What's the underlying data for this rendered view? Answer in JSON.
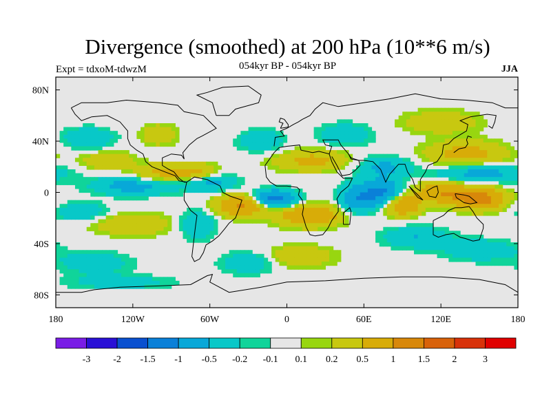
{
  "title": "Divergence (smoothed) at 200 hPa (10**6 m/s)",
  "subtitle": "054kyr BP - 054kyr BP",
  "left_string": "Expt = tdxoM-tdwzM",
  "right_string": "JJA",
  "axes": {
    "x_ticks": [
      {
        "lon": -180,
        "label": "180"
      },
      {
        "lon": -120,
        "label": "120W"
      },
      {
        "lon": -60,
        "label": "60W"
      },
      {
        "lon": 0,
        "label": "0"
      },
      {
        "lon": 60,
        "label": "60E"
      },
      {
        "lon": 120,
        "label": "120E"
      },
      {
        "lon": 180,
        "label": "180"
      }
    ],
    "y_ticks": [
      {
        "lat": 80,
        "label": "80N"
      },
      {
        "lat": 40,
        "label": "40N"
      },
      {
        "lat": 0,
        "label": "0"
      },
      {
        "lat": -40,
        "label": "40S"
      },
      {
        "lat": -80,
        "label": "80S"
      }
    ],
    "lon_range": [
      -180,
      180
    ],
    "lat_range": [
      -90,
      90
    ]
  },
  "colorbar": {
    "colors": [
      "#7a1de6",
      "#2a10d6",
      "#0a50d0",
      "#0a80d8",
      "#08a8d8",
      "#08c8c8",
      "#10d49a",
      "#e6e6e6",
      "#98d610",
      "#c8c810",
      "#d8ac08",
      "#d8880a",
      "#d8620a",
      "#d8320a",
      "#e00000"
    ],
    "labels": [
      "-3",
      "-2",
      "-1.5",
      "-1",
      "-0.5",
      "-0.2",
      "-0.1",
      "0.1",
      "0.2",
      "0.5",
      "1",
      "1.5",
      "2",
      "3"
    ]
  },
  "chart_data": {
    "type": "heatmap",
    "title": "Divergence (smoothed) at 200 hPa (10**6 m/s)",
    "xlabel": "",
    "ylabel": "",
    "levels": [
      -3,
      -2,
      -1.5,
      -1,
      -0.5,
      -0.2,
      -0.1,
      0.1,
      0.2,
      0.5,
      1,
      1.5,
      2,
      3
    ],
    "features": [
      {
        "lon": -35,
        "lat": -10,
        "value": 1.1,
        "slon": 14,
        "slat": 6
      },
      {
        "lon": -10,
        "lat": -5,
        "value": -1.3,
        "slon": 12,
        "slat": 5
      },
      {
        "lon": 18,
        "lat": -18,
        "value": 1.0,
        "slon": 18,
        "slat": 6
      },
      {
        "lon": 150,
        "lat": -5,
        "value": 1.3,
        "slon": 14,
        "slat": 6
      },
      {
        "lon": 120,
        "lat": 0,
        "value": 0.9,
        "slon": 14,
        "slat": 6
      },
      {
        "lon": 55,
        "lat": -5,
        "value": -0.9,
        "slon": 10,
        "slat": 8
      },
      {
        "lon": 75,
        "lat": 0,
        "value": -1.1,
        "slon": 10,
        "slat": 7
      },
      {
        "lon": 90,
        "lat": -10,
        "value": 1.0,
        "slon": 10,
        "slat": 6
      },
      {
        "lon": -120,
        "lat": 5,
        "value": -0.7,
        "slon": 22,
        "slat": 5
      },
      {
        "lon": -60,
        "lat": 8,
        "value": -0.7,
        "slon": 14,
        "slat": 5
      },
      {
        "lon": -70,
        "lat": 15,
        "value": 0.7,
        "slon": 12,
        "slat": 5
      },
      {
        "lon": -100,
        "lat": 15,
        "value": 0.6,
        "slon": 14,
        "slat": 5
      },
      {
        "lon": 20,
        "lat": 25,
        "value": 0.6,
        "slon": 22,
        "slat": 6
      },
      {
        "lon": 75,
        "lat": 20,
        "value": -0.6,
        "slon": 15,
        "slat": 6
      },
      {
        "lon": 150,
        "lat": 15,
        "value": -0.7,
        "slon": 25,
        "slat": 5
      },
      {
        "lon": 140,
        "lat": 30,
        "value": 0.7,
        "slon": 22,
        "slat": 7
      },
      {
        "lon": 120,
        "lat": 55,
        "value": 0.5,
        "slon": 20,
        "slat": 6
      },
      {
        "lon": -140,
        "lat": 25,
        "value": 0.5,
        "slon": 14,
        "slat": 5
      },
      {
        "lon": -155,
        "lat": 42,
        "value": -0.5,
        "slon": 14,
        "slat": 6
      },
      {
        "lon": -100,
        "lat": 45,
        "value": 0.45,
        "slon": 10,
        "slat": 6
      },
      {
        "lon": -20,
        "lat": 40,
        "value": -0.5,
        "slon": 12,
        "slat": 6
      },
      {
        "lon": 45,
        "lat": 45,
        "value": -0.5,
        "slon": 14,
        "slat": 6
      },
      {
        "lon": -120,
        "lat": -25,
        "value": 0.5,
        "slon": 22,
        "slat": 6
      },
      {
        "lon": -160,
        "lat": -15,
        "value": -0.5,
        "slon": 14,
        "slat": 5
      },
      {
        "lon": -70,
        "lat": -25,
        "value": -0.5,
        "slon": 10,
        "slat": 8
      },
      {
        "lon": 100,
        "lat": -35,
        "value": -0.5,
        "slon": 18,
        "slat": 6
      },
      {
        "lon": 150,
        "lat": -45,
        "value": -0.45,
        "slon": 20,
        "slat": 6
      },
      {
        "lon": -150,
        "lat": -55,
        "value": -0.4,
        "slon": 20,
        "slat": 6
      },
      {
        "lon": 10,
        "lat": -50,
        "value": 0.5,
        "slon": 18,
        "slat": 6
      },
      {
        "lon": -30,
        "lat": -55,
        "value": -0.45,
        "slon": 15,
        "slat": 6
      },
      {
        "lon": -130,
        "lat": -70,
        "value": -0.35,
        "slon": 30,
        "slat": 4
      }
    ]
  }
}
